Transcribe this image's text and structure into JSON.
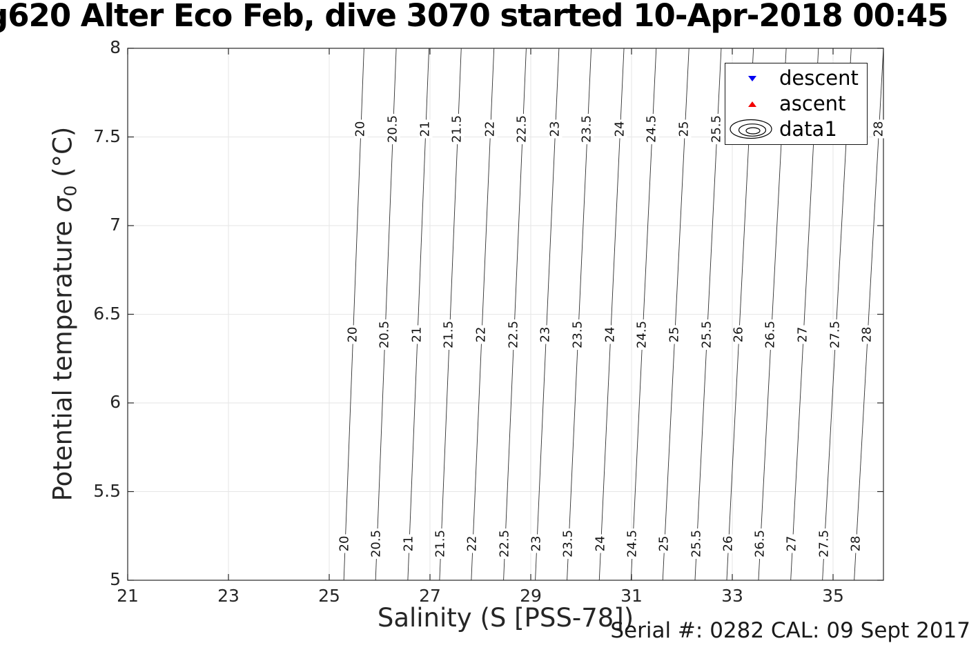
{
  "title": {
    "text": "g620 Alter Eco Feb, dive 3070 started 10-Apr-2018 00:45"
  },
  "axes": {
    "xlabel": {
      "text": "Salinity (S [PSS-78])"
    },
    "ylabel": {
      "prefix": "Potential temperature ",
      "sigma": "σ",
      "subscript": "0",
      "suffix": " (°C)"
    },
    "x_ticks": [
      21,
      23,
      25,
      27,
      29,
      31,
      33,
      35
    ],
    "y_ticks": [
      5,
      5.5,
      6,
      6.5,
      7,
      7.5,
      8
    ],
    "xlim": [
      21,
      36
    ],
    "ylim": [
      5,
      8
    ]
  },
  "legend": {
    "items": [
      {
        "label": "descent",
        "marker": "triangle-down-icon",
        "color": "#0202f2"
      },
      {
        "label": "ascent",
        "marker": "triangle-up-icon",
        "color": "#f20202"
      },
      {
        "label": "data1",
        "marker": "contour-rings-icon",
        "color": "#000000"
      }
    ]
  },
  "annotation": {
    "serial": "Serial #: 0282  CAL: 09 Sept 2017"
  },
  "colors": {
    "grid": "#e6e6e6",
    "axis": "#262626",
    "contour": "#2e2e2e",
    "tick_text": "#262626"
  },
  "chart_data": {
    "type": "contour",
    "title": "g620 Alter Eco Feb, dive 3070 started 10-Apr-2018 00:45",
    "xlabel": "Salinity (S [PSS-78])",
    "ylabel": "Potential temperature σ0 (°C)",
    "xlim": [
      21,
      36
    ],
    "ylim": [
      5,
      8
    ],
    "grid": true,
    "legend_position": "upper-right",
    "series": [
      {
        "name": "descent",
        "type": "scatter",
        "marker": "triangle-down",
        "color": "#0202f2",
        "points": []
      },
      {
        "name": "ascent",
        "type": "scatter",
        "marker": "triangle-up",
        "color": "#f20202",
        "points": []
      }
    ],
    "contour_label_theta_rows": [
      7.545,
      6.385,
      5.205
    ],
    "contours": [
      {
        "level": 20,
        "s_at_theta5": 25.29,
        "s_at_theta8": 25.69
      },
      {
        "level": 20.5,
        "s_at_theta5": 25.92,
        "s_at_theta8": 26.33
      },
      {
        "level": 21,
        "s_at_theta5": 26.56,
        "s_at_theta8": 26.98
      },
      {
        "level": 21.5,
        "s_at_theta5": 27.19,
        "s_at_theta8": 27.62
      },
      {
        "level": 22,
        "s_at_theta5": 27.82,
        "s_at_theta8": 28.27
      },
      {
        "level": 22.5,
        "s_at_theta5": 28.46,
        "s_at_theta8": 28.91
      },
      {
        "level": 23,
        "s_at_theta5": 29.09,
        "s_at_theta8": 29.56
      },
      {
        "level": 23.5,
        "s_at_theta5": 29.72,
        "s_at_theta8": 30.2
      },
      {
        "level": 24,
        "s_at_theta5": 30.36,
        "s_at_theta8": 30.85
      },
      {
        "level": 24.5,
        "s_at_theta5": 30.99,
        "s_at_theta8": 31.49
      },
      {
        "level": 25,
        "s_at_theta5": 31.62,
        "s_at_theta8": 32.14
      },
      {
        "level": 25.5,
        "s_at_theta5": 32.26,
        "s_at_theta8": 32.78
      },
      {
        "level": 26,
        "s_at_theta5": 32.89,
        "s_at_theta8": 33.42
      },
      {
        "level": 26.5,
        "s_at_theta5": 33.52,
        "s_at_theta8": 34.07
      },
      {
        "level": 27,
        "s_at_theta5": 34.16,
        "s_at_theta8": 34.71
      },
      {
        "level": 27.5,
        "s_at_theta5": 34.79,
        "s_at_theta8": 35.36
      },
      {
        "level": 28,
        "s_at_theta5": 35.42,
        "s_at_theta8": 36.0
      }
    ]
  }
}
